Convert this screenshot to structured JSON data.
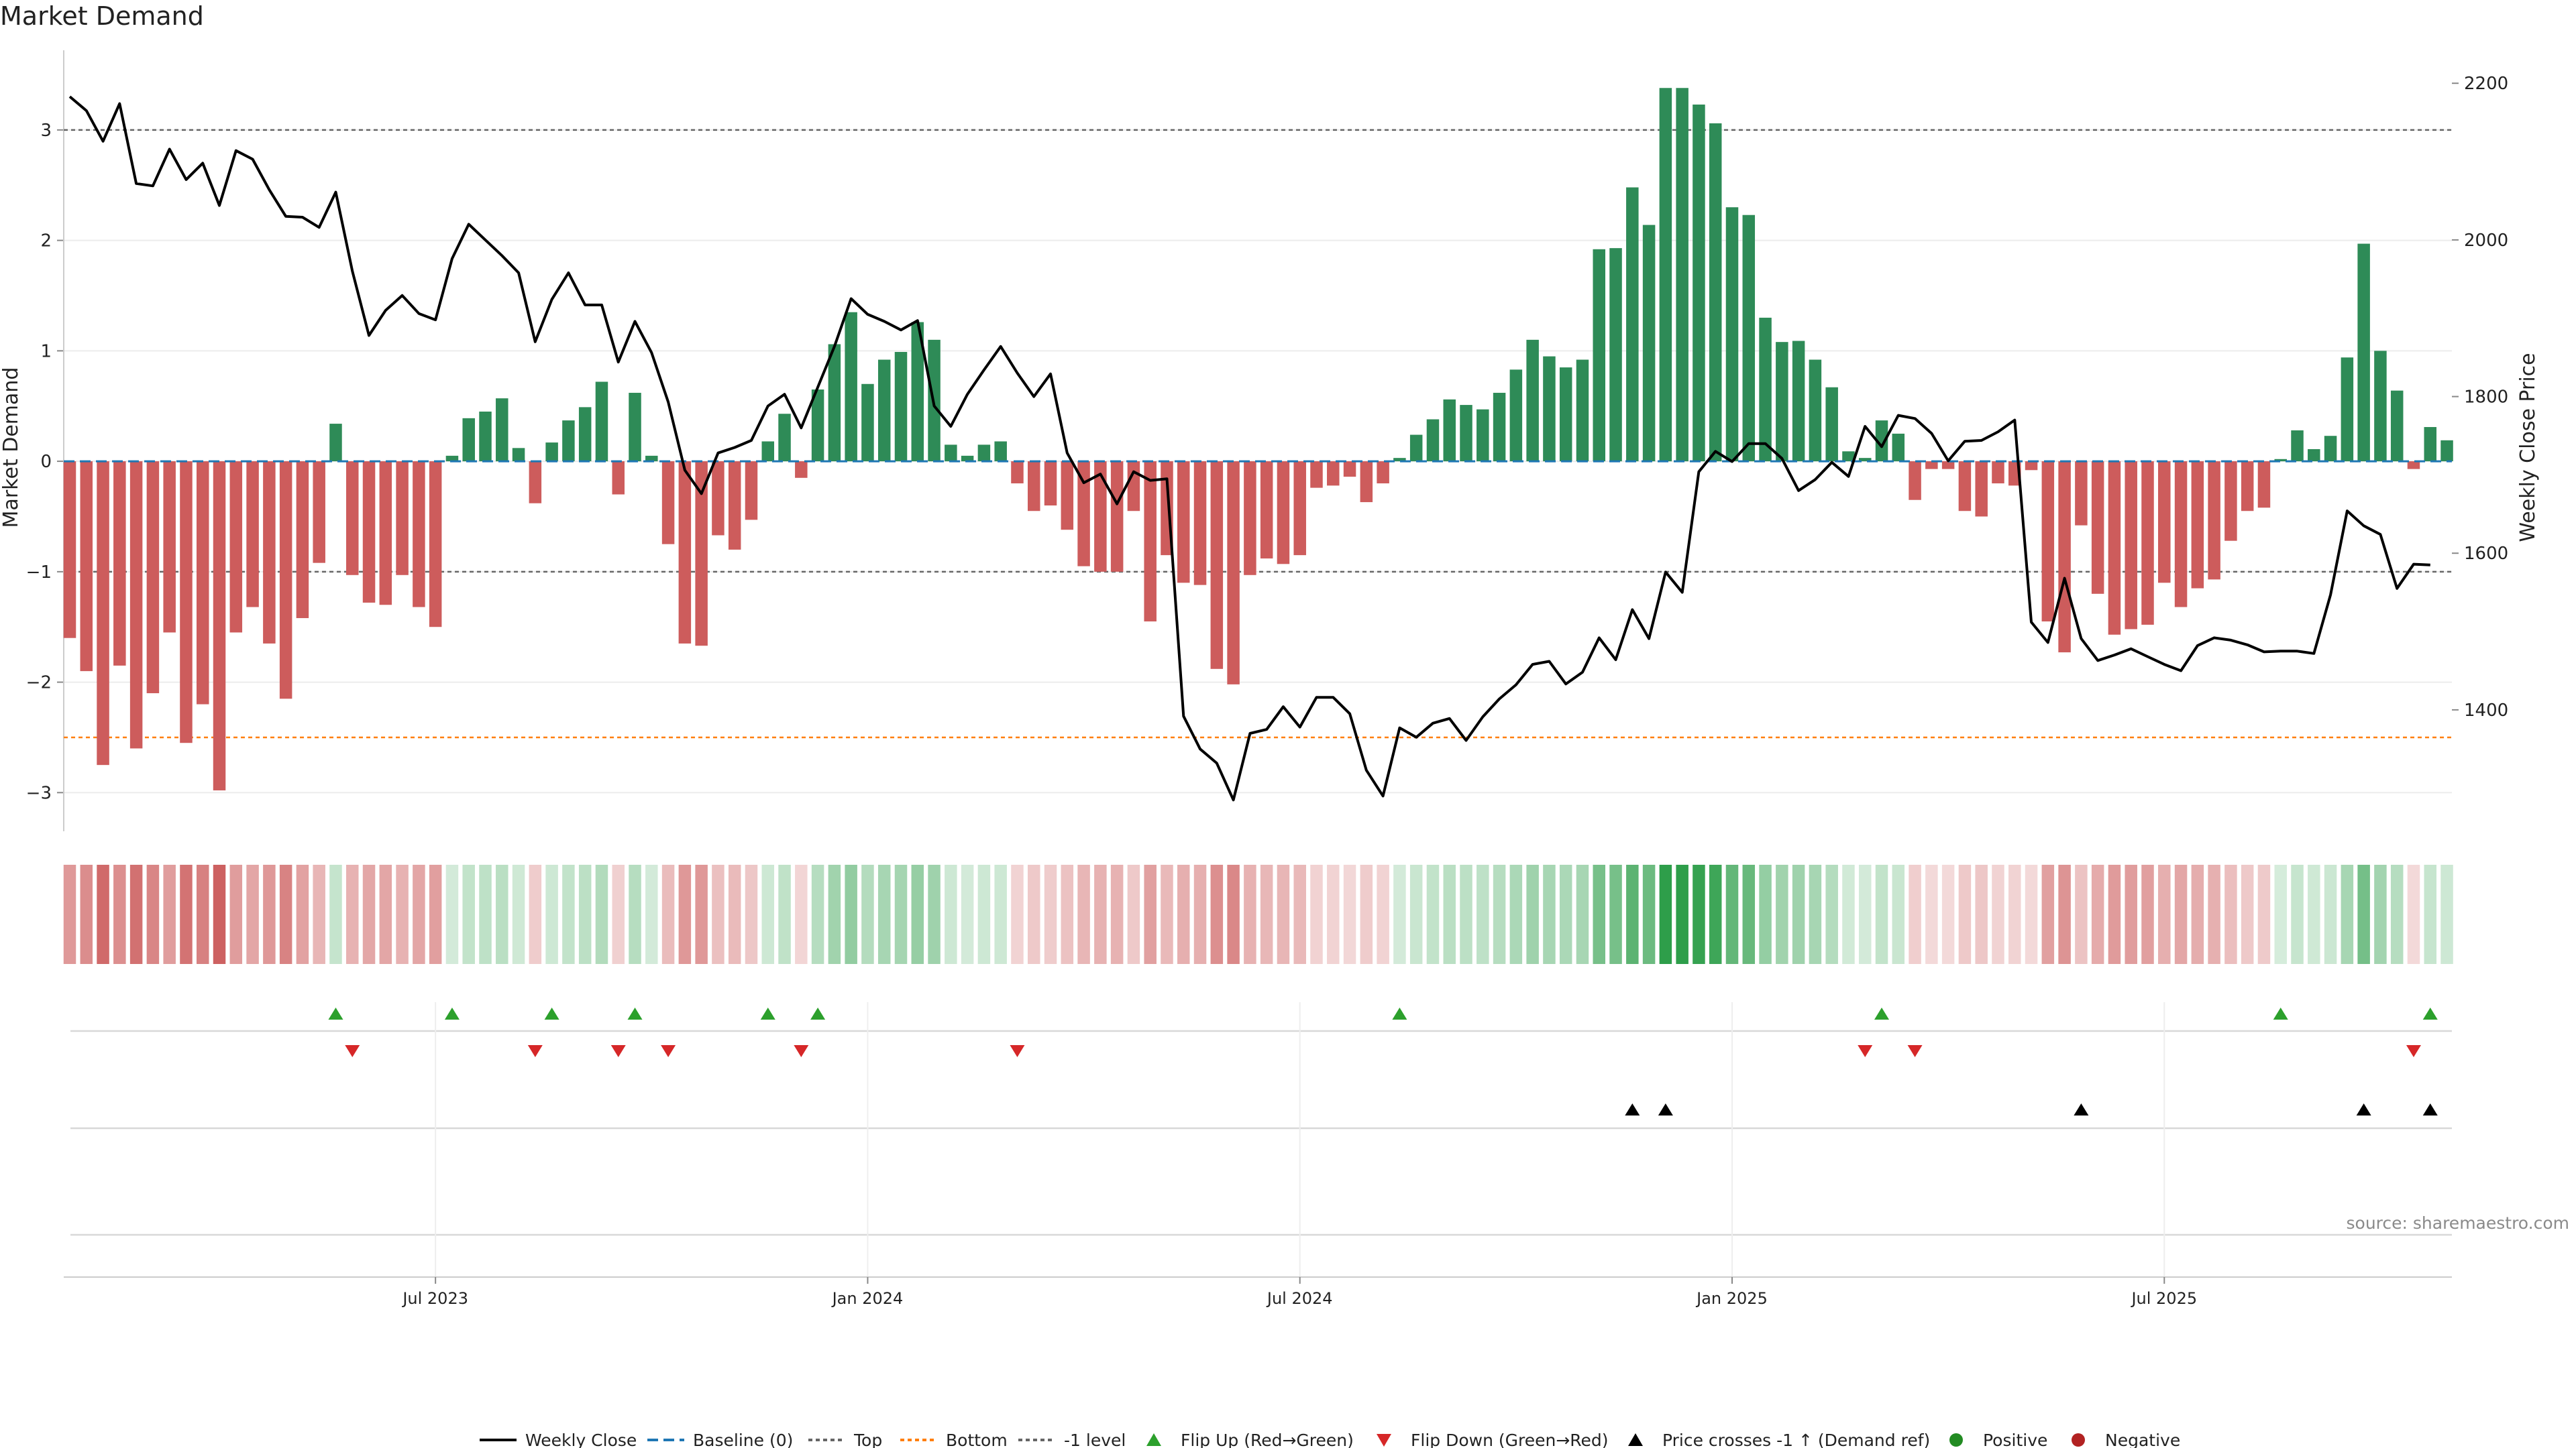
{
  "chart_data": {
    "type": "bar",
    "title": "Market Demand",
    "ylabel": "Market Demand",
    "y2label": "Weekly Close Price",
    "source": "source: sharemaestro.com",
    "ylim": [
      -3.35,
      3.6
    ],
    "y2lim": [
      1245,
      2225
    ],
    "y_ticks": [
      "3",
      "2",
      "1",
      "0",
      "−1",
      "−2",
      "−3"
    ],
    "y_tick_values": [
      3,
      2,
      1,
      0,
      -1,
      -2,
      -3
    ],
    "y2_ticks": [
      "2200",
      "2000",
      "1800",
      "1600",
      "1400"
    ],
    "y2_tick_values": [
      2200,
      2000,
      1800,
      1600,
      1400
    ],
    "x_ticks": [
      {
        "label": "Jul 2023",
        "index": 22
      },
      {
        "label": "Jan 2024",
        "index": 48
      },
      {
        "label": "Jul 2024",
        "index": 74
      },
      {
        "label": "Jan 2025",
        "index": 100
      },
      {
        "label": "Jul 2025",
        "index": 126
      }
    ],
    "reference_lines": {
      "top": 3.0,
      "bottom": -2.5,
      "minus_one": -1.0,
      "baseline": 0
    },
    "demand": [
      -1.6,
      -1.9,
      -2.75,
      -1.85,
      -2.6,
      -2.1,
      -1.55,
      -2.55,
      -2.2,
      -2.98,
      -1.55,
      -1.32,
      -1.65,
      -2.15,
      -1.42,
      -0.92,
      0.34,
      -1.03,
      -1.28,
      -1.3,
      -1.03,
      -1.32,
      -1.5,
      0.05,
      0.39,
      0.45,
      0.57,
      0.12,
      -0.38,
      0.17,
      0.37,
      0.49,
      0.72,
      -0.3,
      0.62,
      0.05,
      -0.75,
      -1.65,
      -1.67,
      -0.67,
      -0.8,
      -0.53,
      0.18,
      0.43,
      -0.15,
      0.65,
      1.06,
      1.35,
      0.7,
      0.92,
      0.99,
      1.26,
      1.1,
      0.15,
      0.05,
      0.15,
      0.18,
      -0.2,
      -0.45,
      -0.4,
      -0.62,
      -0.95,
      -1.0,
      -1.0,
      -0.45,
      -1.45,
      -0.85,
      -1.1,
      -1.12,
      -1.88,
      -2.02,
      -1.03,
      -0.88,
      -0.93,
      -0.85,
      -0.24,
      -0.22,
      -0.14,
      -0.37,
      -0.2,
      0.03,
      0.24,
      0.38,
      0.56,
      0.51,
      0.47,
      0.62,
      0.83,
      1.1,
      0.95,
      0.85,
      0.92,
      1.92,
      1.93,
      2.48,
      2.14,
      3.38,
      3.38,
      3.23,
      3.06,
      2.3,
      2.23,
      1.3,
      1.08,
      1.09,
      0.92,
      0.67,
      0.09,
      0.03,
      0.37,
      0.25,
      -0.35,
      -0.07,
      -0.07,
      -0.45,
      -0.5,
      -0.2,
      -0.22,
      -0.08,
      -1.45,
      -1.73,
      -0.58,
      -1.2,
      -1.57,
      -1.52,
      -1.48,
      -1.1,
      -1.32,
      -1.15,
      -1.07,
      -0.72,
      -0.45,
      -0.42,
      0.02,
      0.28,
      0.11,
      0.23,
      0.94,
      1.97,
      1.0,
      0.64,
      -0.07,
      0.31,
      0.19
    ],
    "close": [
      2183,
      2165,
      2126,
      2174,
      2072,
      2069,
      2116,
      2077,
      2098,
      2044,
      2114,
      2103,
      2064,
      2030,
      2029,
      2016,
      2061,
      1960,
      1878,
      1910,
      1929,
      1906,
      1898,
      1976,
      2020,
      2000,
      1980,
      1958,
      1870,
      1924,
      1958,
      1917,
      1917,
      1844,
      1896,
      1856,
      1793,
      1706,
      1676,
      1728,
      1735,
      1744,
      1788,
      1803,
      1760,
      1812,
      1864,
      1925,
      1905,
      1896,
      1885,
      1897,
      1788,
      1762,
      1803,
      1834,
      1864,
      1830,
      1800,
      1829,
      1728,
      1690,
      1701,
      1663,
      1704,
      1693,
      1695,
      1392,
      1350,
      1332,
      1285,
      1370,
      1375,
      1404,
      1378,
      1416,
      1416,
      1395,
      1323,
      1290,
      1377,
      1365,
      1383,
      1389,
      1361,
      1391,
      1414,
      1432,
      1458,
      1462,
      1433,
      1448,
      1492,
      1464,
      1528,
      1491,
      1576,
      1550,
      1704,
      1730,
      1717,
      1740,
      1740,
      1721,
      1680,
      1694,
      1716,
      1698,
      1762,
      1736,
      1776,
      1772,
      1753,
      1718,
      1743,
      1744,
      1755,
      1770,
      1512,
      1486,
      1568,
      1491,
      1463,
      1470,
      1478,
      1468,
      1458,
      1450,
      1482,
      1492,
      1489,
      1483,
      1474,
      1475,
      1475,
      1472,
      1547,
      1654,
      1635,
      1624,
      1555,
      1586,
      1585
    ],
    "flip_up_index": [
      16,
      23,
      29,
      34,
      42,
      45,
      80,
      109,
      133,
      142
    ],
    "flip_down_index": [
      17,
      28,
      33,
      36,
      44,
      57,
      108,
      111,
      141
    ],
    "price_cross_index": [
      94,
      96,
      121,
      138,
      142
    ],
    "legend": [
      "Weekly Close",
      "Baseline (0)",
      "Top",
      "Bottom",
      "-1 level",
      "Flip Up (Red→Green)",
      "Flip Down (Green→Red)",
      "Price crosses -1 ↑ (Demand ref)",
      "Positive",
      "Negative"
    ],
    "colors": {
      "positive": "#2e8b57",
      "negative": "#cd5c5c",
      "close": "#000000",
      "baseline": "#1f77b4",
      "top": "#666666",
      "bottom": "#ff7f0e",
      "flip_up": "#2ca02c",
      "flip_down": "#d62728",
      "cross": "#000000",
      "positive_dot": "#228b22",
      "negative_dot": "#b22222"
    }
  }
}
